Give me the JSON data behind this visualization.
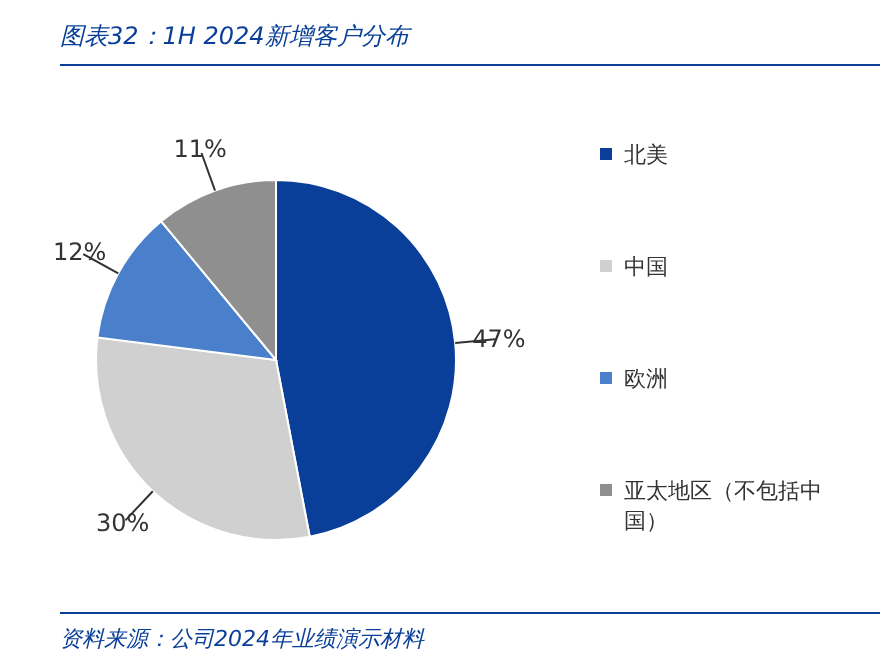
{
  "chart_data": {
    "type": "pie",
    "title": "图表32：1H 2024新增客户分布",
    "categories": [
      "北美",
      "中国",
      "欧洲",
      "亚太地区（不包括中国）"
    ],
    "values": [
      47,
      30,
      12,
      11
    ],
    "value_labels": [
      "47%",
      "30%",
      "12%",
      "11%"
    ],
    "colors": [
      "#0a3f99",
      "#d0d0d0",
      "#4a7fcc",
      "#8f8f8f"
    ],
    "legend": "right",
    "annotations": [
      "资料来源：公司2024年业绩演示材料"
    ]
  }
}
